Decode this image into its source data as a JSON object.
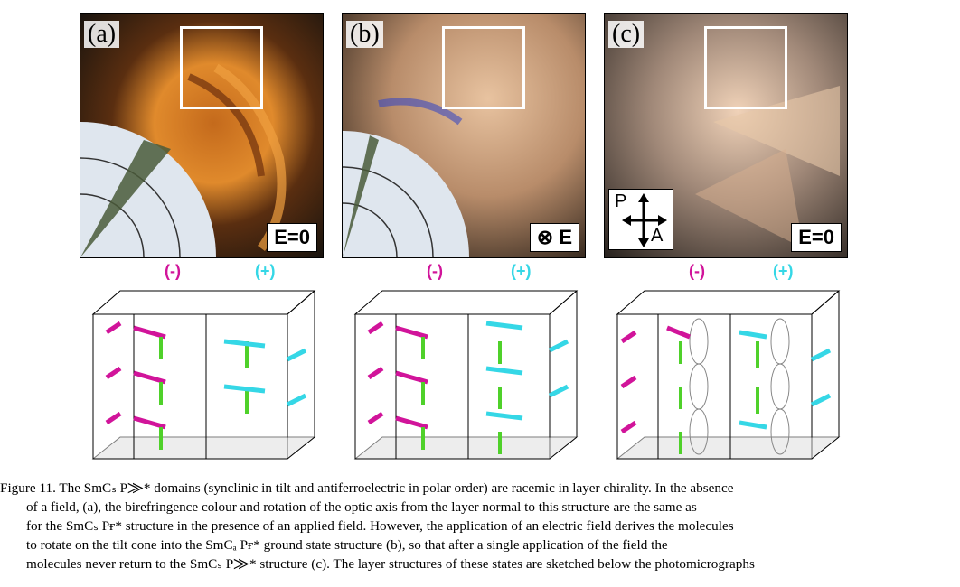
{
  "panels": [
    {
      "label": "(a)",
      "field_label": "E=0"
    },
    {
      "label": "(b)",
      "field_label": "E",
      "field_symbol": "⊗"
    },
    {
      "label": "(c)",
      "field_label": "E=0",
      "polarizer": {
        "p": "P",
        "a": "A"
      }
    }
  ],
  "signs": [
    {
      "neg": "(-)",
      "pos": "(+)"
    },
    {
      "neg": "(-)",
      "pos": "(+)"
    },
    {
      "neg": "(-)",
      "pos": "(+)"
    }
  ],
  "caption": {
    "lines": [
      "Figure 11.   The SmCₛ P⨠* domains (synclinic in tilt and antiferroelectric in polar order) are racemic in layer chirality. In the absence",
      "of a field, (a), the birefringence colour and rotation of the optic axis from the layer normal to this structure are the same as",
      "for the SmCₛ Pғ* structure in the presence of an applied field. However, the application of an electric field derives the molecules",
      "to rotate on the tilt cone into the SmCₐ Pғ* ground state structure (b), so that after a single application of the field the",
      "molecules never return to the SmCₛ P⨠* structure (c). The layer structures of these states are sketched below the photomicrographs"
    ]
  },
  "colors": {
    "magenta": "#d1149a",
    "cyan": "#35d7e6",
    "green": "#4fd12a",
    "orange": "#d9731a"
  }
}
